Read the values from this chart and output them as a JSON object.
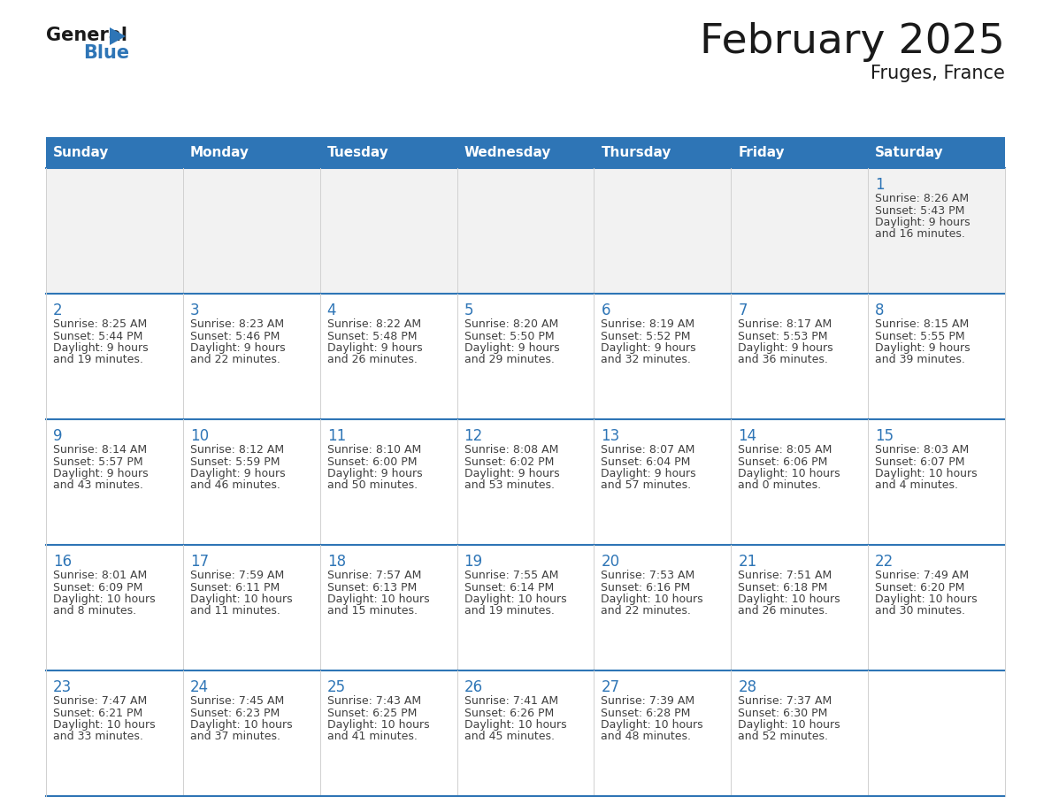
{
  "title": "February 2025",
  "subtitle": "Fruges, France",
  "header_bg": "#2E75B6",
  "header_text_color": "#FFFFFF",
  "cell_bg": "#FFFFFF",
  "first_row_bg": "#F2F2F2",
  "cell_border_color": "#2E75B6",
  "row_separator_color": "#2E75B6",
  "col_separator_color": "#D0D0D0",
  "day_number_color": "#2E75B6",
  "day_info_color": "#404040",
  "days_of_week": [
    "Sunday",
    "Monday",
    "Tuesday",
    "Wednesday",
    "Thursday",
    "Friday",
    "Saturday"
  ],
  "calendar": [
    [
      null,
      null,
      null,
      null,
      null,
      null,
      {
        "day": 1,
        "sunrise": "8:26 AM",
        "sunset": "5:43 PM",
        "daylight": "9 hours and 16 minutes."
      }
    ],
    [
      {
        "day": 2,
        "sunrise": "8:25 AM",
        "sunset": "5:44 PM",
        "daylight": "9 hours and 19 minutes."
      },
      {
        "day": 3,
        "sunrise": "8:23 AM",
        "sunset": "5:46 PM",
        "daylight": "9 hours and 22 minutes."
      },
      {
        "day": 4,
        "sunrise": "8:22 AM",
        "sunset": "5:48 PM",
        "daylight": "9 hours and 26 minutes."
      },
      {
        "day": 5,
        "sunrise": "8:20 AM",
        "sunset": "5:50 PM",
        "daylight": "9 hours and 29 minutes."
      },
      {
        "day": 6,
        "sunrise": "8:19 AM",
        "sunset": "5:52 PM",
        "daylight": "9 hours and 32 minutes."
      },
      {
        "day": 7,
        "sunrise": "8:17 AM",
        "sunset": "5:53 PM",
        "daylight": "9 hours and 36 minutes."
      },
      {
        "day": 8,
        "sunrise": "8:15 AM",
        "sunset": "5:55 PM",
        "daylight": "9 hours and 39 minutes."
      }
    ],
    [
      {
        "day": 9,
        "sunrise": "8:14 AM",
        "sunset": "5:57 PM",
        "daylight": "9 hours and 43 minutes."
      },
      {
        "day": 10,
        "sunrise": "8:12 AM",
        "sunset": "5:59 PM",
        "daylight": "9 hours and 46 minutes."
      },
      {
        "day": 11,
        "sunrise": "8:10 AM",
        "sunset": "6:00 PM",
        "daylight": "9 hours and 50 minutes."
      },
      {
        "day": 12,
        "sunrise": "8:08 AM",
        "sunset": "6:02 PM",
        "daylight": "9 hours and 53 minutes."
      },
      {
        "day": 13,
        "sunrise": "8:07 AM",
        "sunset": "6:04 PM",
        "daylight": "9 hours and 57 minutes."
      },
      {
        "day": 14,
        "sunrise": "8:05 AM",
        "sunset": "6:06 PM",
        "daylight": "10 hours and 0 minutes."
      },
      {
        "day": 15,
        "sunrise": "8:03 AM",
        "sunset": "6:07 PM",
        "daylight": "10 hours and 4 minutes."
      }
    ],
    [
      {
        "day": 16,
        "sunrise": "8:01 AM",
        "sunset": "6:09 PM",
        "daylight": "10 hours and 8 minutes."
      },
      {
        "day": 17,
        "sunrise": "7:59 AM",
        "sunset": "6:11 PM",
        "daylight": "10 hours and 11 minutes."
      },
      {
        "day": 18,
        "sunrise": "7:57 AM",
        "sunset": "6:13 PM",
        "daylight": "10 hours and 15 minutes."
      },
      {
        "day": 19,
        "sunrise": "7:55 AM",
        "sunset": "6:14 PM",
        "daylight": "10 hours and 19 minutes."
      },
      {
        "day": 20,
        "sunrise": "7:53 AM",
        "sunset": "6:16 PM",
        "daylight": "10 hours and 22 minutes."
      },
      {
        "day": 21,
        "sunrise": "7:51 AM",
        "sunset": "6:18 PM",
        "daylight": "10 hours and 26 minutes."
      },
      {
        "day": 22,
        "sunrise": "7:49 AM",
        "sunset": "6:20 PM",
        "daylight": "10 hours and 30 minutes."
      }
    ],
    [
      {
        "day": 23,
        "sunrise": "7:47 AM",
        "sunset": "6:21 PM",
        "daylight": "10 hours and 33 minutes."
      },
      {
        "day": 24,
        "sunrise": "7:45 AM",
        "sunset": "6:23 PM",
        "daylight": "10 hours and 37 minutes."
      },
      {
        "day": 25,
        "sunrise": "7:43 AM",
        "sunset": "6:25 PM",
        "daylight": "10 hours and 41 minutes."
      },
      {
        "day": 26,
        "sunrise": "7:41 AM",
        "sunset": "6:26 PM",
        "daylight": "10 hours and 45 minutes."
      },
      {
        "day": 27,
        "sunrise": "7:39 AM",
        "sunset": "6:28 PM",
        "daylight": "10 hours and 48 minutes."
      },
      {
        "day": 28,
        "sunrise": "7:37 AM",
        "sunset": "6:30 PM",
        "daylight": "10 hours and 52 minutes."
      },
      null
    ]
  ]
}
